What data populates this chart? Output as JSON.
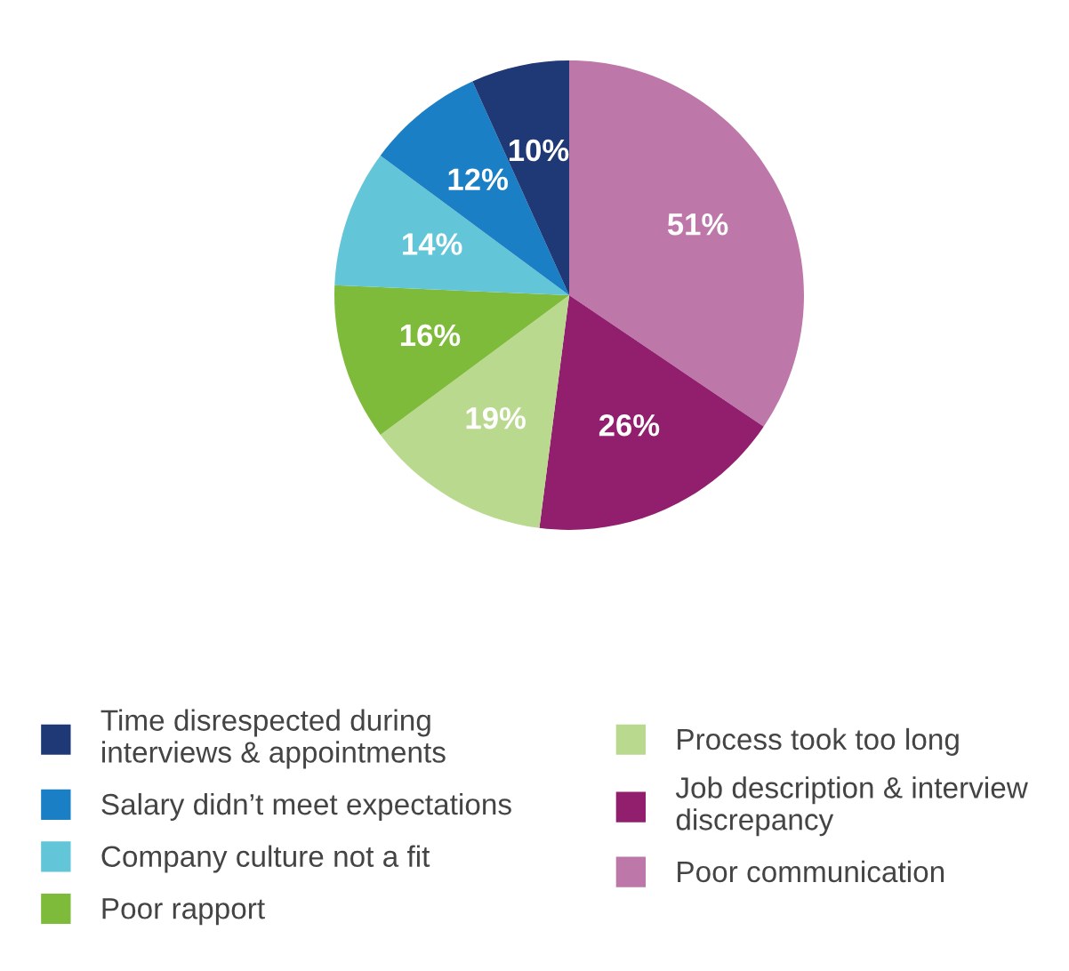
{
  "chart_data": {
    "type": "pie",
    "categories": [
      "Poor communication",
      "Job description & interview\ndiscrepancy",
      "Process took too long",
      "Poor rapport",
      "Company culture not a fit",
      "Salary didn’t meet expectations",
      "Time disrespected during\ninterviews & appointments"
    ],
    "values": [
      51,
      26,
      19,
      16,
      14,
      12,
      10
    ],
    "colors": [
      "#bd78a9",
      "#911f6e",
      "#b9d98e",
      "#7fbb3a",
      "#62c6d8",
      "#1a7fc4",
      "#1f3876"
    ],
    "value_labels": [
      "51%",
      "26%",
      "19%",
      "16%",
      "14%",
      "12%",
      "10%"
    ],
    "legend": "bottom"
  }
}
